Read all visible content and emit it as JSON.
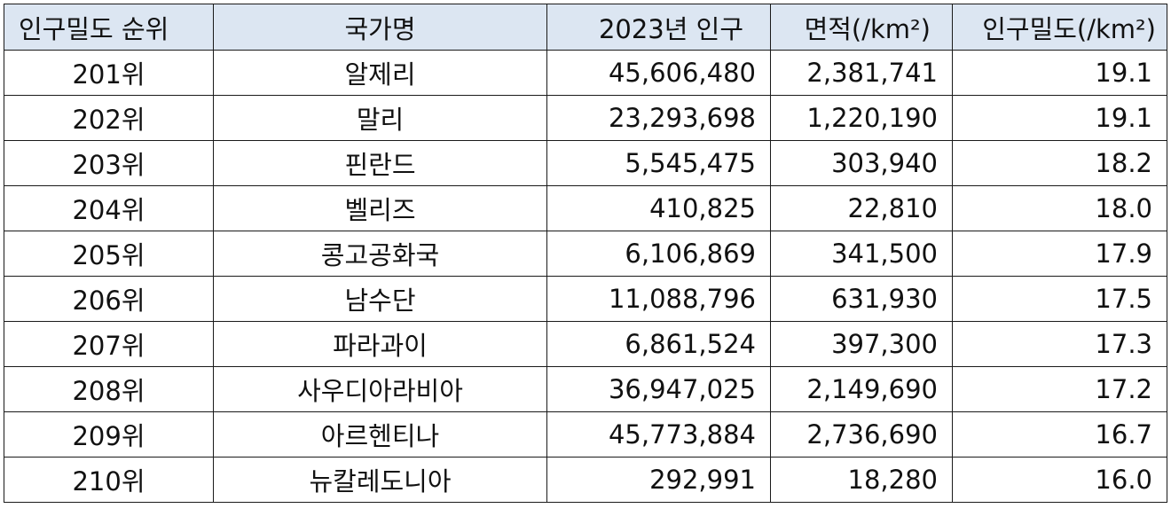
{
  "table": {
    "headers": {
      "rank": "인구밀도 순위",
      "country": "국가명",
      "population": "2023년 인구",
      "area": "면적(/km²)",
      "density": "인구밀도(/km²)"
    },
    "rows": [
      {
        "rank": "201위",
        "country": "알제리",
        "population": "45,606,480",
        "area": "2,381,741",
        "density": "19.1"
      },
      {
        "rank": "202위",
        "country": "말리",
        "population": "23,293,698",
        "area": "1,220,190",
        "density": "19.1"
      },
      {
        "rank": "203위",
        "country": "핀란드",
        "population": "5,545,475",
        "area": "303,940",
        "density": "18.2"
      },
      {
        "rank": "204위",
        "country": "벨리즈",
        "population": "410,825",
        "area": "22,810",
        "density": "18.0"
      },
      {
        "rank": "205위",
        "country": "콩고공화국",
        "population": "6,106,869",
        "area": "341,500",
        "density": "17.9"
      },
      {
        "rank": "206위",
        "country": "남수단",
        "population": "11,088,796",
        "area": "631,930",
        "density": "17.5"
      },
      {
        "rank": "207위",
        "country": "파라과이",
        "population": "6,861,524",
        "area": "397,300",
        "density": "17.3"
      },
      {
        "rank": "208위",
        "country": "사우디아라비아",
        "population": "36,947,025",
        "area": "2,149,690",
        "density": "17.2"
      },
      {
        "rank": "209위",
        "country": "아르헨티나",
        "population": "45,773,884",
        "area": "2,736,690",
        "density": "16.7"
      },
      {
        "rank": "210위",
        "country": "뉴칼레도니아",
        "population": "292,991",
        "area": "18,280",
        "density": "16.0"
      }
    ]
  }
}
